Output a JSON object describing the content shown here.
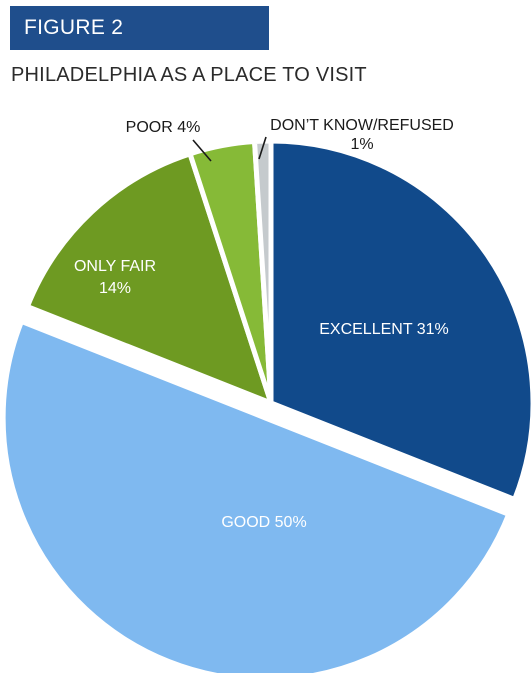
{
  "figure_label": "FIGURE 2",
  "chart_data": {
    "type": "pie",
    "title": "PHILADELPHIA AS A PLACE TO VISIT",
    "categories": [
      "EXCELLENT",
      "GOOD",
      "ONLY FAIR",
      "POOR",
      "DON’T KNOW/REFUSED"
    ],
    "values": [
      31,
      50,
      14,
      4,
      1
    ],
    "unit": "%",
    "colors": [
      "#114a8b",
      "#7fb9f0",
      "#6e9a22",
      "#86ba37",
      "#c5cacd"
    ],
    "labels": [
      {
        "lines": [
          "EXCELLENT 31%"
        ],
        "color": "#ffffff"
      },
      {
        "lines": [
          "GOOD 50%"
        ],
        "color": "#ffffff"
      },
      {
        "lines": [
          "ONLY FAIR",
          "14%"
        ],
        "color": "#ffffff"
      },
      {
        "lines": [
          "POOR 4%"
        ],
        "color": "#1a1a1a"
      },
      {
        "lines": [
          "DON’T KNOW/REFUSED",
          "1%"
        ],
        "color": "#1a1a1a"
      }
    ],
    "exploded": "GOOD"
  }
}
